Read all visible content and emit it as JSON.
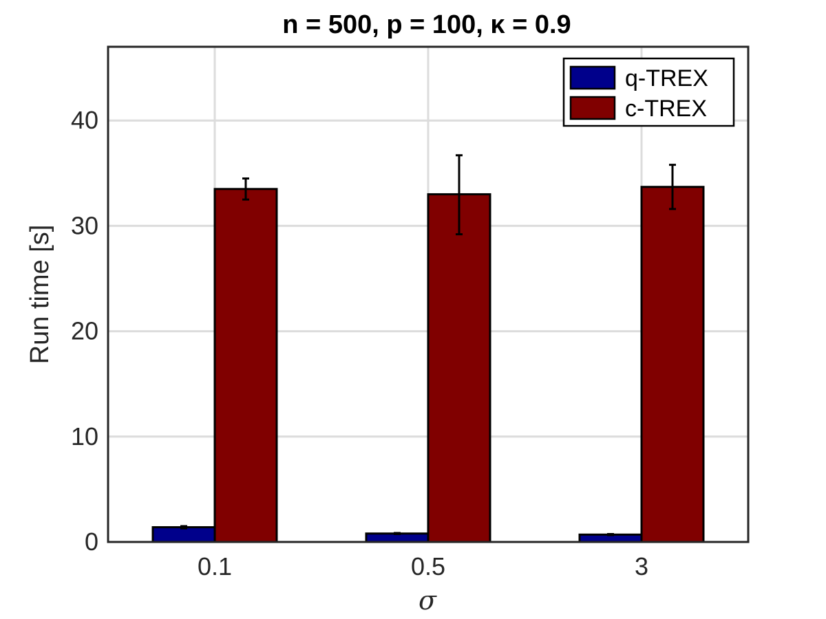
{
  "chart_data": {
    "type": "bar",
    "title": "n = 500, p = 100, κ = 0.9",
    "xlabel": "σ",
    "ylabel": "Run time [s]",
    "categories": [
      "0.1",
      "0.5",
      "3"
    ],
    "ylim": [
      0,
      47
    ],
    "yticks": [
      0,
      10,
      20,
      30,
      40
    ],
    "grid": true,
    "legend_position": "top-right",
    "series": [
      {
        "name": "q-TREX",
        "color": "#00008b",
        "values": [
          1.4,
          0.8,
          0.7
        ],
        "err_low": [
          0.1,
          0.05,
          0.05
        ],
        "err_high": [
          0.1,
          0.05,
          0.05
        ]
      },
      {
        "name": "c-TREX",
        "color": "#800000",
        "values": [
          33.5,
          33.0,
          33.7
        ],
        "err_low": [
          1.0,
          3.8,
          2.1
        ],
        "err_high": [
          1.0,
          3.7,
          2.1
        ]
      }
    ]
  }
}
